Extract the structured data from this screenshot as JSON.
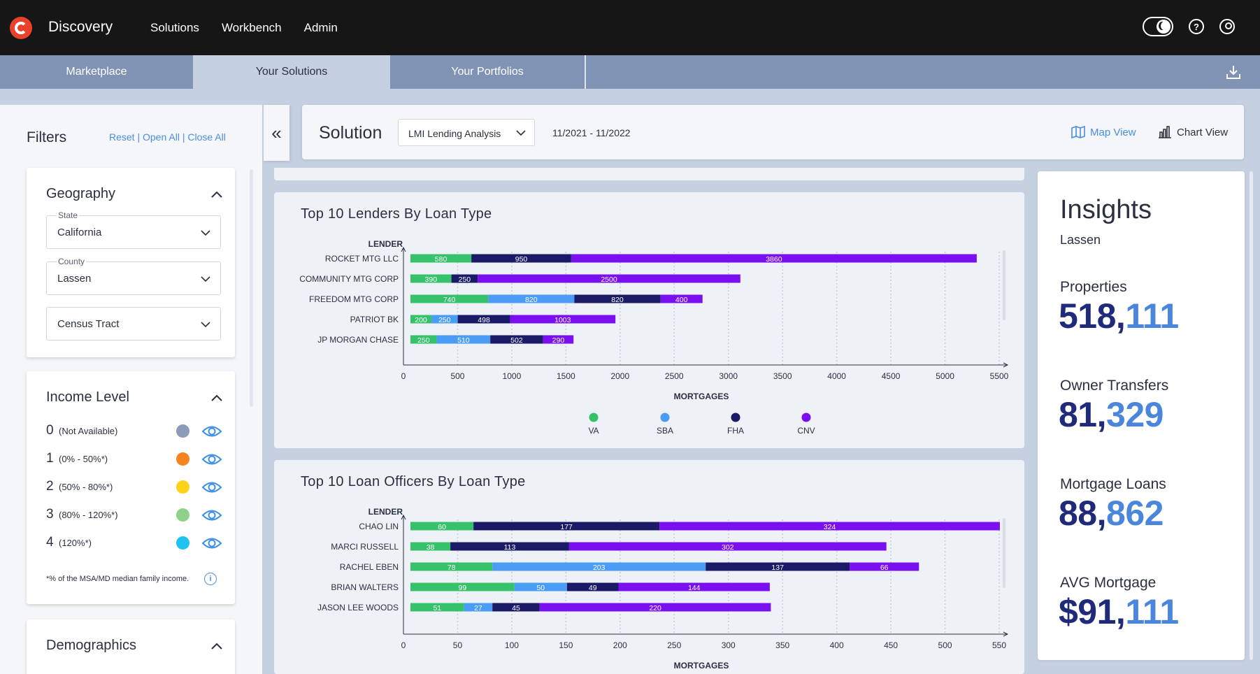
{
  "app": {
    "name": "Discovery"
  },
  "topnav": [
    "Solutions",
    "Workbench",
    "Admin"
  ],
  "tabs": [
    "Marketplace",
    "Your Solutions",
    "Your Portfolios"
  ],
  "filters": {
    "title": "Filters",
    "links": [
      "Reset",
      "Open All",
      "Close All"
    ],
    "geography": {
      "title": "Geography",
      "state": {
        "label": "State",
        "value": "California"
      },
      "county": {
        "label": "County",
        "value": "Lassen"
      },
      "tract": {
        "value": "Census Tract"
      }
    },
    "income": {
      "title": "Income Level",
      "levels": [
        {
          "num": "0",
          "range": "(Not Available)",
          "color": "#8b9bb8"
        },
        {
          "num": "1",
          "range": "(0% - 50%*)",
          "color": "#f5841f"
        },
        {
          "num": "2",
          "range": "(50% - 80%*)",
          "color": "#ffd21a"
        },
        {
          "num": "3",
          "range": "(80% - 120%*)",
          "color": "#8fd08a"
        },
        {
          "num": "4",
          "range": "(120%*)",
          "color": "#1ec3f2"
        }
      ],
      "footnote": "*% of the MSA/MD median family income."
    },
    "demographics": {
      "title": "Demographics"
    }
  },
  "solution": {
    "title": "Solution",
    "selected": "LMI Lending Analysis",
    "date_range": "11/2021 - 11/2022",
    "map_view": "Map View",
    "chart_view": "Chart View"
  },
  "chart_data": [
    {
      "type": "bar",
      "orientation": "horizontal-stacked",
      "title": "Top 10 Lenders By Loan Type",
      "ylabel": "LENDER",
      "xlabel": "MORTGAGES",
      "xlim": [
        0,
        5500
      ],
      "xticks": [
        0,
        500,
        1000,
        1500,
        2000,
        2500,
        3000,
        3500,
        4000,
        4500,
        5000,
        5500
      ],
      "categories": [
        "ROCKET MTG LLC",
        "COMMUNITY MTG CORP",
        "FREEDOM MTG CORP",
        "PATRIOT BK",
        "JP MORGAN CHASE"
      ],
      "series": [
        {
          "name": "VA",
          "color": "#35c26b",
          "values": [
            580,
            390,
            740,
            200,
            250
          ]
        },
        {
          "name": "SBA",
          "color": "#4a9cf5",
          "values": [
            0,
            0,
            820,
            250,
            510
          ]
        },
        {
          "name": "FHA",
          "color": "#1a1a66",
          "values": [
            950,
            250,
            820,
            498,
            502
          ]
        },
        {
          "name": "CNV",
          "color": "#7a0ff0",
          "values": [
            3860,
            2500,
            400,
            1003,
            290
          ]
        }
      ],
      "legend": "bottom"
    },
    {
      "type": "bar",
      "orientation": "horizontal-stacked",
      "title": "Top 10 Loan Officers By Loan Type",
      "ylabel": "LENDER",
      "xlabel": "MORTGAGES",
      "xlim": [
        0,
        550
      ],
      "xticks": [
        0,
        50,
        100,
        150,
        200,
        250,
        300,
        350,
        400,
        450,
        500,
        550
      ],
      "categories": [
        "CHAO LIN",
        "MARCI RUSSELL",
        "RACHEL EBEN",
        "BRIAN WALTERS",
        "JASON LEE WOODS"
      ],
      "series": [
        {
          "name": "VA",
          "color": "#35c26b",
          "values": [
            60,
            38,
            78,
            99,
            51
          ]
        },
        {
          "name": "SBA",
          "color": "#4a9cf5",
          "values": [
            0,
            0,
            203,
            50,
            27
          ]
        },
        {
          "name": "FHA",
          "color": "#1a1a66",
          "values": [
            177,
            113,
            137,
            49,
            45
          ]
        },
        {
          "name": "CNV",
          "color": "#7a0ff0",
          "values": [
            324,
            302,
            66,
            144,
            220
          ]
        }
      ],
      "legend": "none"
    }
  ],
  "insights": {
    "title": "Insights",
    "subtitle": "Lassen",
    "metrics": [
      {
        "label": "Properties",
        "value_a": "518,",
        "value_b": "111"
      },
      {
        "label": "Owner Transfers",
        "value_a": "81,",
        "value_b": "329"
      },
      {
        "label": "Mortgage Loans",
        "value_a": "88,",
        "value_b": "862"
      },
      {
        "label": "AVG Mortgage",
        "value_a": "$91,",
        "value_b": "111"
      }
    ]
  }
}
